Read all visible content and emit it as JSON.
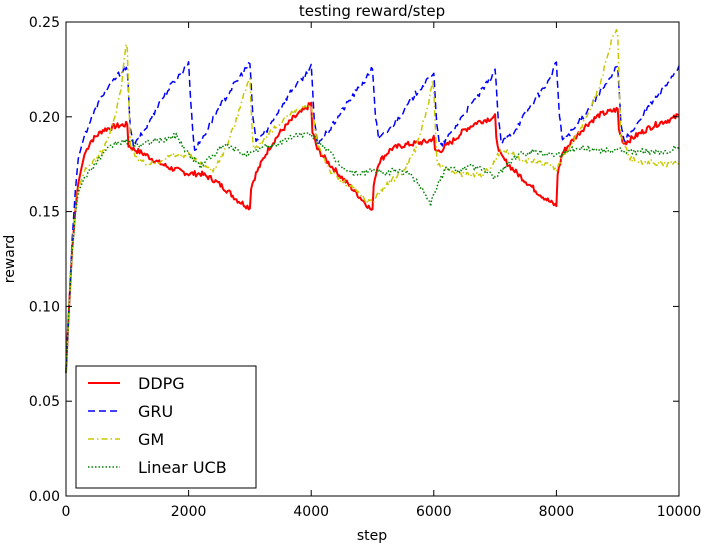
{
  "chart_data": {
    "type": "line",
    "title": "testing reward/step",
    "xlabel": "step",
    "ylabel": "reward",
    "xlim": [
      0,
      10000
    ],
    "ylim": [
      0.0,
      0.25
    ],
    "xticks": [
      0,
      2000,
      4000,
      6000,
      8000,
      10000
    ],
    "xtick_labels": [
      "0",
      "2000",
      "4000",
      "6000",
      "8000",
      "10000"
    ],
    "yticks": [
      0.0,
      0.05,
      0.1,
      0.15,
      0.2,
      0.25
    ],
    "ytick_labels": [
      "0.00",
      "0.05",
      "0.10",
      "0.15",
      "0.20",
      "0.25"
    ],
    "grid": false,
    "legend_position": "lower-left",
    "series": [
      {
        "name": "DDPG",
        "color": "#ff0000",
        "style": "solid",
        "x": [
          0,
          50,
          100,
          150,
          200,
          300,
          400,
          500,
          600,
          800,
          1000,
          1020,
          1100,
          1300,
          1500,
          1700,
          2000,
          2200,
          2400,
          2600,
          2800,
          3000,
          3020,
          3100,
          3300,
          3500,
          3700,
          3900,
          4000,
          4020,
          4100,
          4300,
          4500,
          4700,
          4900,
          5000,
          5020,
          5100,
          5300,
          5500,
          5700,
          5900,
          6000,
          6020,
          6100,
          6300,
          6500,
          6700,
          6900,
          7000,
          7020,
          7100,
          7300,
          7500,
          7700,
          7900,
          8000,
          8020,
          8100,
          8300,
          8500,
          8700,
          8900,
          9000,
          9020,
          9100,
          9300,
          9500,
          9700,
          9900,
          10000
        ],
        "y": [
          0.065,
          0.1,
          0.13,
          0.15,
          0.165,
          0.18,
          0.187,
          0.19,
          0.193,
          0.195,
          0.196,
          0.185,
          0.183,
          0.18,
          0.176,
          0.173,
          0.17,
          0.17,
          0.167,
          0.162,
          0.156,
          0.152,
          0.163,
          0.17,
          0.183,
          0.192,
          0.199,
          0.204,
          0.207,
          0.192,
          0.183,
          0.175,
          0.168,
          0.161,
          0.154,
          0.15,
          0.165,
          0.176,
          0.183,
          0.185,
          0.186,
          0.187,
          0.189,
          0.182,
          0.182,
          0.187,
          0.193,
          0.197,
          0.199,
          0.2,
          0.188,
          0.179,
          0.172,
          0.166,
          0.16,
          0.155,
          0.153,
          0.17,
          0.181,
          0.189,
          0.196,
          0.201,
          0.203,
          0.204,
          0.193,
          0.186,
          0.19,
          0.194,
          0.197,
          0.199,
          0.201
        ]
      },
      {
        "name": "GRU",
        "color": "#0000ff",
        "style": "dashed",
        "x": [
          0,
          50,
          100,
          150,
          200,
          300,
          400,
          500,
          600,
          800,
          950,
          1000,
          1050,
          1100,
          1300,
          1500,
          1700,
          1900,
          2000,
          2050,
          2100,
          2300,
          2500,
          2700,
          2900,
          3000,
          3050,
          3100,
          3300,
          3500,
          3700,
          3900,
          4000,
          4050,
          4100,
          4300,
          4500,
          4700,
          4900,
          5000,
          5050,
          5100,
          5300,
          5500,
          5700,
          5900,
          6000,
          6050,
          6100,
          6300,
          6500,
          6700,
          6900,
          7000,
          7050,
          7100,
          7300,
          7500,
          7700,
          7900,
          8000,
          8050,
          8100,
          8300,
          8500,
          8700,
          8900,
          9000,
          9050,
          9100,
          9300,
          9500,
          9700,
          9900,
          10000
        ],
        "y": [
          0.065,
          0.1,
          0.135,
          0.16,
          0.178,
          0.19,
          0.198,
          0.205,
          0.212,
          0.22,
          0.226,
          0.224,
          0.195,
          0.184,
          0.194,
          0.206,
          0.216,
          0.224,
          0.229,
          0.2,
          0.182,
          0.193,
          0.205,
          0.215,
          0.224,
          0.228,
          0.2,
          0.187,
          0.194,
          0.205,
          0.215,
          0.222,
          0.227,
          0.198,
          0.186,
          0.193,
          0.203,
          0.212,
          0.22,
          0.226,
          0.2,
          0.188,
          0.194,
          0.203,
          0.212,
          0.219,
          0.224,
          0.195,
          0.184,
          0.192,
          0.202,
          0.21,
          0.219,
          0.225,
          0.2,
          0.186,
          0.192,
          0.202,
          0.211,
          0.22,
          0.229,
          0.2,
          0.188,
          0.194,
          0.203,
          0.212,
          0.221,
          0.228,
          0.198,
          0.187,
          0.195,
          0.205,
          0.213,
          0.222,
          0.227
        ]
      },
      {
        "name": "GM",
        "color": "#c8c800",
        "style": "dashdot",
        "x": [
          0,
          50,
          100,
          150,
          200,
          300,
          400,
          500,
          600,
          700,
          800,
          900,
          980,
          1000,
          1050,
          1200,
          1400,
          1600,
          1800,
          2000,
          2200,
          2400,
          2600,
          2800,
          2900,
          3000,
          3050,
          3200,
          3400,
          3600,
          3800,
          4000,
          4100,
          4300,
          4500,
          4700,
          4900,
          5000,
          5100,
          5300,
          5500,
          5700,
          5900,
          5980,
          6000,
          6050,
          6200,
          6400,
          6600,
          6800,
          7000,
          7100,
          7300,
          7500,
          7700,
          7900,
          8000,
          8100,
          8300,
          8500,
          8700,
          8900,
          8980,
          9000,
          9050,
          9200,
          9400,
          9600,
          9800,
          10000
        ],
        "y": [
          0.065,
          0.1,
          0.13,
          0.15,
          0.162,
          0.171,
          0.175,
          0.178,
          0.182,
          0.19,
          0.2,
          0.215,
          0.238,
          0.236,
          0.185,
          0.176,
          0.175,
          0.178,
          0.18,
          0.18,
          0.175,
          0.172,
          0.183,
          0.2,
          0.213,
          0.22,
          0.184,
          0.186,
          0.194,
          0.2,
          0.204,
          0.205,
          0.186,
          0.172,
          0.166,
          0.162,
          0.156,
          0.155,
          0.16,
          0.166,
          0.171,
          0.183,
          0.205,
          0.22,
          0.212,
          0.176,
          0.172,
          0.17,
          0.17,
          0.169,
          0.177,
          0.183,
          0.18,
          0.177,
          0.176,
          0.175,
          0.172,
          0.178,
          0.188,
          0.2,
          0.215,
          0.24,
          0.247,
          0.243,
          0.19,
          0.178,
          0.176,
          0.176,
          0.175,
          0.176
        ]
      },
      {
        "name": "Linear UCB",
        "color": "#008000",
        "style": "dotted",
        "x": [
          0,
          50,
          100,
          150,
          200,
          300,
          400,
          500,
          600,
          800,
          1000,
          1200,
          1400,
          1600,
          1800,
          2000,
          2200,
          2400,
          2600,
          2800,
          3000,
          3200,
          3400,
          3600,
          3800,
          4000,
          4200,
          4400,
          4600,
          4800,
          5000,
          5200,
          5400,
          5600,
          5800,
          5950,
          6000,
          6200,
          6400,
          6600,
          6800,
          7000,
          7200,
          7400,
          7600,
          7800,
          8000,
          8200,
          8400,
          8600,
          8800,
          9000,
          9200,
          9400,
          9600,
          9800,
          10000
        ],
        "y": [
          0.065,
          0.1,
          0.128,
          0.148,
          0.16,
          0.168,
          0.172,
          0.176,
          0.18,
          0.186,
          0.187,
          0.185,
          0.187,
          0.188,
          0.19,
          0.18,
          0.174,
          0.18,
          0.185,
          0.182,
          0.18,
          0.184,
          0.185,
          0.188,
          0.191,
          0.19,
          0.185,
          0.177,
          0.171,
          0.17,
          0.172,
          0.17,
          0.172,
          0.17,
          0.163,
          0.154,
          0.16,
          0.173,
          0.172,
          0.174,
          0.172,
          0.168,
          0.175,
          0.18,
          0.182,
          0.181,
          0.18,
          0.182,
          0.184,
          0.183,
          0.182,
          0.183,
          0.181,
          0.182,
          0.181,
          0.181,
          0.185
        ]
      }
    ]
  }
}
